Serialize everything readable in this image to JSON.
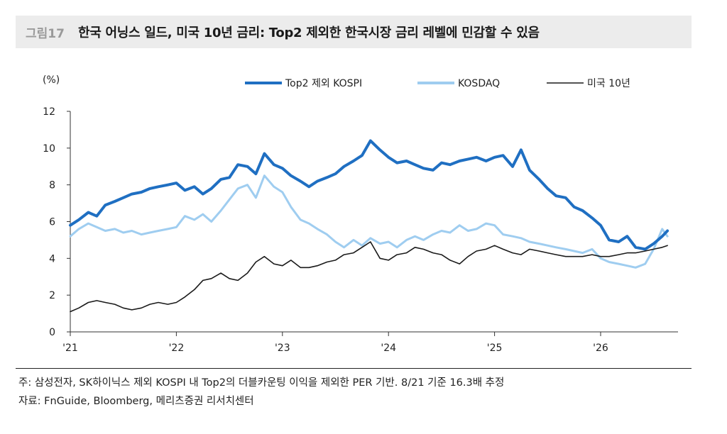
{
  "header": {
    "figure_no": "그림17",
    "title": "한국 어닝스 일드, 미국 10년 금리: Top2 제외한 한국시장 금리 레벨에 민감할 수 있음"
  },
  "chart_data": {
    "type": "line",
    "y_unit": "(%)",
    "ylim": [
      0,
      12
    ],
    "yticks": [
      0,
      2,
      4,
      6,
      8,
      10,
      12
    ],
    "xlim": [
      2021.0,
      2026.72
    ],
    "xticks": [
      {
        "value": 2021,
        "label": "'21"
      },
      {
        "value": 2022,
        "label": "'22"
      },
      {
        "value": 2023,
        "label": "'23"
      },
      {
        "value": 2024,
        "label": "'24"
      },
      {
        "value": 2025,
        "label": "'25"
      },
      {
        "value": 2026,
        "label": "'26"
      }
    ],
    "legend_position": "top",
    "grid": false,
    "series": [
      {
        "name": "Top2 제외 KOSPI",
        "color": "#1f6fc2",
        "points": [
          [
            2021.0,
            5.8
          ],
          [
            2021.08,
            6.1
          ],
          [
            2021.17,
            6.5
          ],
          [
            2021.25,
            6.3
          ],
          [
            2021.33,
            6.9
          ],
          [
            2021.42,
            7.1
          ],
          [
            2021.5,
            7.3
          ],
          [
            2021.58,
            7.5
          ],
          [
            2021.67,
            7.6
          ],
          [
            2021.75,
            7.8
          ],
          [
            2021.83,
            7.9
          ],
          [
            2021.92,
            8.0
          ],
          [
            2022.0,
            8.1
          ],
          [
            2022.08,
            7.7
          ],
          [
            2022.17,
            7.9
          ],
          [
            2022.25,
            7.5
          ],
          [
            2022.33,
            7.8
          ],
          [
            2022.42,
            8.3
          ],
          [
            2022.5,
            8.4
          ],
          [
            2022.58,
            9.1
          ],
          [
            2022.67,
            9.0
          ],
          [
            2022.75,
            8.6
          ],
          [
            2022.83,
            9.7
          ],
          [
            2022.92,
            9.1
          ],
          [
            2023.0,
            8.9
          ],
          [
            2023.08,
            8.5
          ],
          [
            2023.17,
            8.2
          ],
          [
            2023.25,
            7.9
          ],
          [
            2023.33,
            8.2
          ],
          [
            2023.42,
            8.4
          ],
          [
            2023.5,
            8.6
          ],
          [
            2023.58,
            9.0
          ],
          [
            2023.67,
            9.3
          ],
          [
            2023.75,
            9.6
          ],
          [
            2023.83,
            10.4
          ],
          [
            2023.92,
            9.9
          ],
          [
            2024.0,
            9.5
          ],
          [
            2024.08,
            9.2
          ],
          [
            2024.17,
            9.3
          ],
          [
            2024.25,
            9.1
          ],
          [
            2024.33,
            8.9
          ],
          [
            2024.42,
            8.8
          ],
          [
            2024.5,
            9.2
          ],
          [
            2024.58,
            9.1
          ],
          [
            2024.67,
            9.3
          ],
          [
            2024.75,
            9.4
          ],
          [
            2024.83,
            9.5
          ],
          [
            2024.92,
            9.3
          ],
          [
            2025.0,
            9.5
          ],
          [
            2025.08,
            9.6
          ],
          [
            2025.17,
            9.0
          ],
          [
            2025.25,
            9.9
          ],
          [
            2025.33,
            8.8
          ],
          [
            2025.42,
            8.3
          ],
          [
            2025.5,
            7.8
          ],
          [
            2025.58,
            7.4
          ],
          [
            2025.67,
            7.3
          ],
          [
            2025.75,
            6.8
          ],
          [
            2025.83,
            6.6
          ],
          [
            2025.92,
            6.2
          ],
          [
            2026.0,
            5.8
          ],
          [
            2026.08,
            5.0
          ],
          [
            2026.17,
            4.9
          ],
          [
            2026.25,
            5.2
          ],
          [
            2026.33,
            4.6
          ],
          [
            2026.42,
            4.5
          ],
          [
            2026.5,
            4.8
          ],
          [
            2026.58,
            5.2
          ],
          [
            2026.63,
            5.5
          ]
        ]
      },
      {
        "name": "KOSDAQ",
        "color": "#9fcdf0",
        "points": [
          [
            2021.0,
            5.2
          ],
          [
            2021.08,
            5.6
          ],
          [
            2021.17,
            5.9
          ],
          [
            2021.25,
            5.7
          ],
          [
            2021.33,
            5.5
          ],
          [
            2021.42,
            5.6
          ],
          [
            2021.5,
            5.4
          ],
          [
            2021.58,
            5.5
          ],
          [
            2021.67,
            5.3
          ],
          [
            2021.75,
            5.4
          ],
          [
            2021.83,
            5.5
          ],
          [
            2021.92,
            5.6
          ],
          [
            2022.0,
            5.7
          ],
          [
            2022.08,
            6.3
          ],
          [
            2022.17,
            6.1
          ],
          [
            2022.25,
            6.4
          ],
          [
            2022.33,
            6.0
          ],
          [
            2022.42,
            6.6
          ],
          [
            2022.5,
            7.2
          ],
          [
            2022.58,
            7.8
          ],
          [
            2022.67,
            8.0
          ],
          [
            2022.75,
            7.3
          ],
          [
            2022.83,
            8.5
          ],
          [
            2022.92,
            7.9
          ],
          [
            2023.0,
            7.6
          ],
          [
            2023.08,
            6.8
          ],
          [
            2023.17,
            6.1
          ],
          [
            2023.25,
            5.9
          ],
          [
            2023.33,
            5.6
          ],
          [
            2023.42,
            5.3
          ],
          [
            2023.5,
            4.9
          ],
          [
            2023.58,
            4.6
          ],
          [
            2023.67,
            5.0
          ],
          [
            2023.75,
            4.7
          ],
          [
            2023.83,
            5.1
          ],
          [
            2023.92,
            4.8
          ],
          [
            2024.0,
            4.9
          ],
          [
            2024.08,
            4.6
          ],
          [
            2024.17,
            5.0
          ],
          [
            2024.25,
            5.2
          ],
          [
            2024.33,
            5.0
          ],
          [
            2024.42,
            5.3
          ],
          [
            2024.5,
            5.5
          ],
          [
            2024.58,
            5.4
          ],
          [
            2024.67,
            5.8
          ],
          [
            2024.75,
            5.5
          ],
          [
            2024.83,
            5.6
          ],
          [
            2024.92,
            5.9
          ],
          [
            2025.0,
            5.8
          ],
          [
            2025.08,
            5.3
          ],
          [
            2025.17,
            5.2
          ],
          [
            2025.25,
            5.1
          ],
          [
            2025.33,
            4.9
          ],
          [
            2025.42,
            4.8
          ],
          [
            2025.5,
            4.7
          ],
          [
            2025.58,
            4.6
          ],
          [
            2025.67,
            4.5
          ],
          [
            2025.75,
            4.4
          ],
          [
            2025.83,
            4.3
          ],
          [
            2025.92,
            4.5
          ],
          [
            2026.0,
            4.0
          ],
          [
            2026.08,
            3.8
          ],
          [
            2026.17,
            3.7
          ],
          [
            2026.25,
            3.6
          ],
          [
            2026.33,
            3.5
          ],
          [
            2026.42,
            3.7
          ],
          [
            2026.5,
            4.5
          ],
          [
            2026.58,
            5.6
          ],
          [
            2026.63,
            5.2
          ]
        ]
      },
      {
        "name": "미국 10년",
        "color": "#1a1a1a",
        "points": [
          [
            2021.0,
            1.1
          ],
          [
            2021.08,
            1.3
          ],
          [
            2021.17,
            1.6
          ],
          [
            2021.25,
            1.7
          ],
          [
            2021.33,
            1.6
          ],
          [
            2021.42,
            1.5
          ],
          [
            2021.5,
            1.3
          ],
          [
            2021.58,
            1.2
          ],
          [
            2021.67,
            1.3
          ],
          [
            2021.75,
            1.5
          ],
          [
            2021.83,
            1.6
          ],
          [
            2021.92,
            1.5
          ],
          [
            2022.0,
            1.6
          ],
          [
            2022.08,
            1.9
          ],
          [
            2022.17,
            2.3
          ],
          [
            2022.25,
            2.8
          ],
          [
            2022.33,
            2.9
          ],
          [
            2022.42,
            3.2
          ],
          [
            2022.5,
            2.9
          ],
          [
            2022.58,
            2.8
          ],
          [
            2022.67,
            3.2
          ],
          [
            2022.75,
            3.8
          ],
          [
            2022.83,
            4.1
          ],
          [
            2022.92,
            3.7
          ],
          [
            2023.0,
            3.6
          ],
          [
            2023.08,
            3.9
          ],
          [
            2023.17,
            3.5
          ],
          [
            2023.25,
            3.5
          ],
          [
            2023.33,
            3.6
          ],
          [
            2023.42,
            3.8
          ],
          [
            2023.5,
            3.9
          ],
          [
            2023.58,
            4.2
          ],
          [
            2023.67,
            4.3
          ],
          [
            2023.75,
            4.6
          ],
          [
            2023.83,
            4.9
          ],
          [
            2023.92,
            4.0
          ],
          [
            2024.0,
            3.9
          ],
          [
            2024.08,
            4.2
          ],
          [
            2024.17,
            4.3
          ],
          [
            2024.25,
            4.6
          ],
          [
            2024.33,
            4.5
          ],
          [
            2024.42,
            4.3
          ],
          [
            2024.5,
            4.2
          ],
          [
            2024.58,
            3.9
          ],
          [
            2024.67,
            3.7
          ],
          [
            2024.75,
            4.1
          ],
          [
            2024.83,
            4.4
          ],
          [
            2024.92,
            4.5
          ],
          [
            2025.0,
            4.7
          ],
          [
            2025.08,
            4.5
          ],
          [
            2025.17,
            4.3
          ],
          [
            2025.25,
            4.2
          ],
          [
            2025.33,
            4.5
          ],
          [
            2025.42,
            4.4
          ],
          [
            2025.5,
            4.3
          ],
          [
            2025.58,
            4.2
          ],
          [
            2025.67,
            4.1
          ],
          [
            2025.75,
            4.1
          ],
          [
            2025.83,
            4.1
          ],
          [
            2025.92,
            4.2
          ],
          [
            2026.0,
            4.1
          ],
          [
            2026.08,
            4.1
          ],
          [
            2026.17,
            4.2
          ],
          [
            2026.25,
            4.3
          ],
          [
            2026.33,
            4.3
          ],
          [
            2026.42,
            4.4
          ],
          [
            2026.5,
            4.5
          ],
          [
            2026.58,
            4.6
          ],
          [
            2026.63,
            4.7
          ]
        ]
      }
    ]
  },
  "footer": {
    "note": "주: 삼성전자, SK하이닉스 제외 KOSPI 내 Top2의 더블카운팅 이익을 제외한 PER 기반. 8/21 기준 16.3배 추정",
    "source": "자료: FnGuide, Bloomberg, 메리츠증권 리서치센터"
  }
}
